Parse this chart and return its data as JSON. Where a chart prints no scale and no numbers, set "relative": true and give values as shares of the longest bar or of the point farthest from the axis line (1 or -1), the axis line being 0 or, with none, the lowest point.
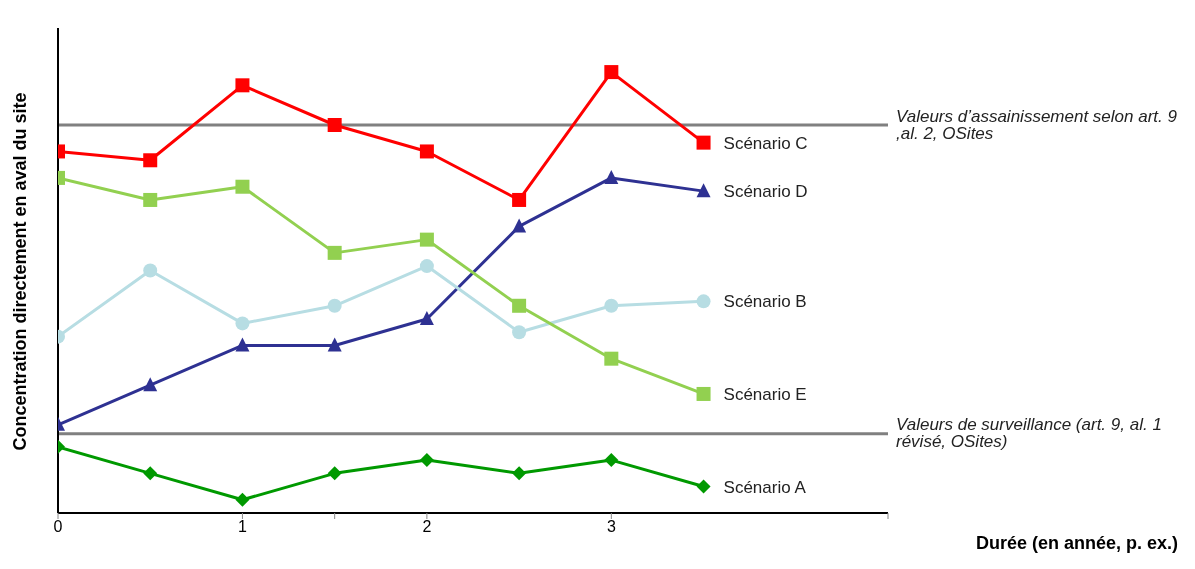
{
  "chart_data": {
    "type": "line",
    "relative": true,
    "xlabel": "Durée (en année, p. ex.)",
    "ylabel": "Concentration directement en aval du site",
    "x": [
      0,
      0.5,
      1,
      1.5,
      2,
      2.5,
      3,
      3.5
    ],
    "xlim": [
      0,
      4.5
    ],
    "xticks": [
      0,
      1,
      {
        "value": 1.5,
        "label": null
      },
      2,
      3,
      {
        "value": 4.5,
        "label": null
      }
    ],
    "series": [
      {
        "name": "Scénario C",
        "color": "#ff0000",
        "marker": "square",
        "values": [
          0.82,
          0.8,
          0.97,
          0.88,
          0.82,
          0.71,
          1,
          0.84
        ]
      },
      {
        "name": "Scénario D",
        "color": "#2e3192",
        "marker": "triangle",
        "values": [
          0.2,
          0.29,
          0.38,
          0.38,
          0.44,
          0.65,
          0.76,
          0.73
        ]
      },
      {
        "name": "Scénario B",
        "color": "#b7dde3",
        "marker": "circle",
        "values": [
          0.4,
          0.55,
          0.43,
          0.47,
          0.56,
          0.41,
          0.47,
          0.48
        ]
      },
      {
        "name": "Scénario E",
        "color": "#92d050",
        "marker": "square",
        "values": [
          0.76,
          0.71,
          0.74,
          0.59,
          0.62,
          0.47,
          0.35,
          0.27
        ]
      },
      {
        "name": "Scénario A",
        "color": "#009900",
        "marker": "diamond",
        "values": [
          0.15,
          0.09,
          0.03,
          0.09,
          0.12,
          0.09,
          0.12,
          0.06
        ]
      }
    ],
    "ref_lines": [
      {
        "axis": "y",
        "value": 0.88,
        "label": "Valeurs d’assainissement selon art. 9 ,al. 2, OSites",
        "color": "#808080"
      },
      {
        "axis": "y",
        "value": 0.18,
        "label": "Valeurs de surveillance (art. 9, al. 1 révisé, OSites)",
        "color": "#808080"
      }
    ]
  }
}
